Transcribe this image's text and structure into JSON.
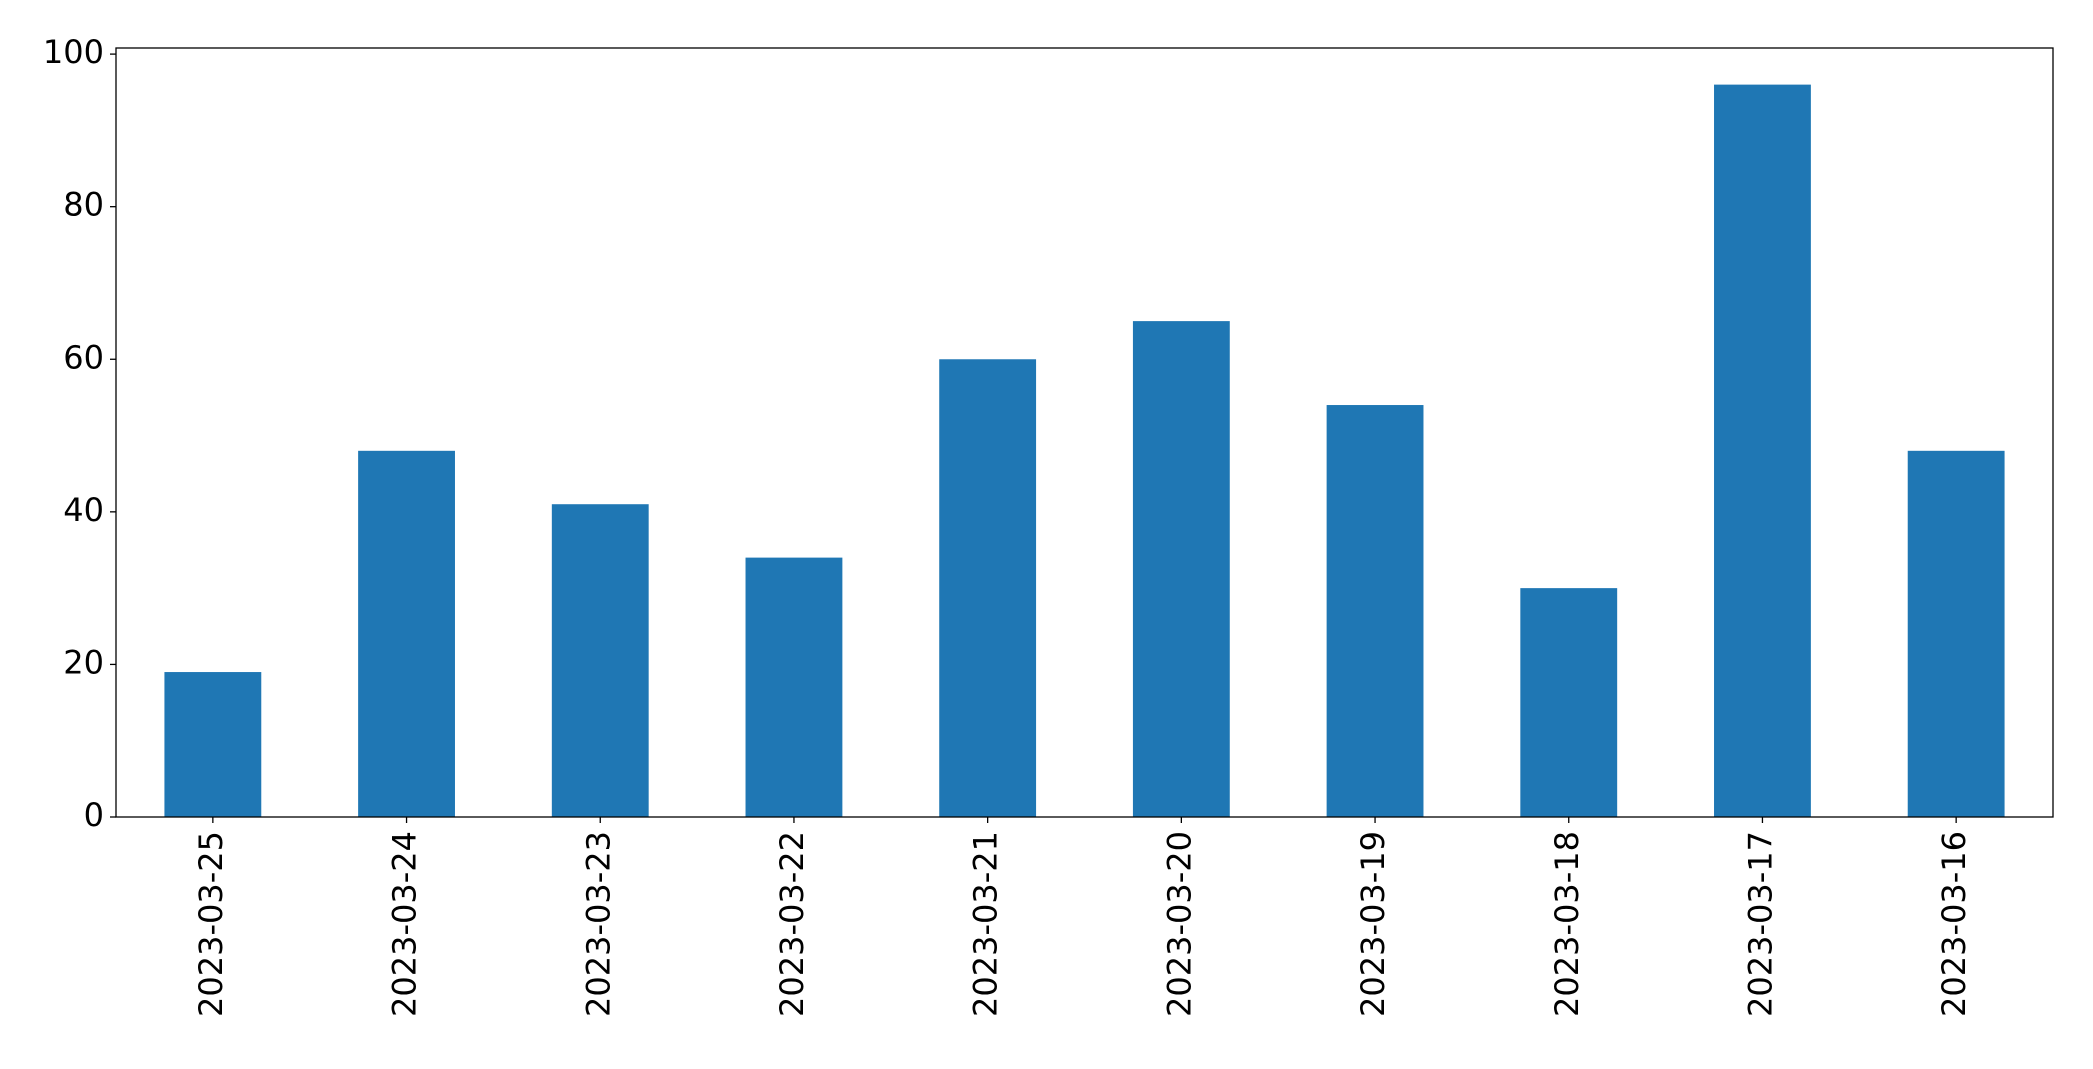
{
  "chart_data": {
    "type": "bar",
    "categories": [
      "2023-03-25",
      "2023-03-24",
      "2023-03-23",
      "2023-03-22",
      "2023-03-21",
      "2023-03-20",
      "2023-03-19",
      "2023-03-18",
      "2023-03-17",
      "2023-03-16"
    ],
    "values": [
      19,
      48,
      41,
      34,
      60,
      65,
      54,
      30,
      96,
      48
    ],
    "color": "#1f77b4",
    "ylim": [
      0,
      100.8
    ],
    "yticks": [
      0,
      20,
      40,
      60,
      80,
      100
    ],
    "grid": false
  }
}
